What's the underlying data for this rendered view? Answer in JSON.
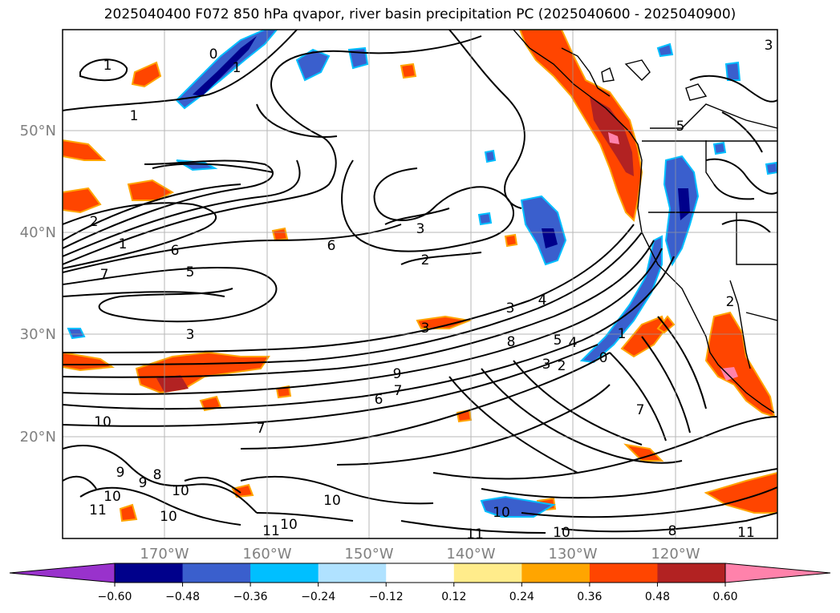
{
  "title": "2025040400 F072 850 hPa qvapor, river basin precipitation PC (2025040600 - 2025040900)",
  "lat_labels": [
    "50°N",
    "40°N",
    "30°N",
    "20°N"
  ],
  "lon_labels": [
    "170°W",
    "160°W",
    "150°W",
    "140°W",
    "130°W",
    "120°W"
  ],
  "colorbar": {
    "colors": [
      "#9932cc",
      "#00008b",
      "#3a5fcd",
      "#00bfff",
      "#b0e2ff",
      "#ffffff",
      "#ffec8b",
      "#ffa500",
      "#ff4500",
      "#b22222",
      "#ff82ab"
    ],
    "ticks": [
      "−0.60",
      "−0.48",
      "−0.36",
      "−0.24",
      "−0.12",
      "0.12",
      "0.24",
      "0.36",
      "0.48",
      "0.60"
    ]
  },
  "contour_labels": [
    "1",
    "0",
    "1",
    "1",
    "5",
    "2",
    "1",
    "6",
    "7",
    "5",
    "3",
    "2",
    "3",
    "6",
    "3",
    "4",
    "3",
    "8",
    "5",
    "4",
    "3",
    "2",
    "0",
    "1",
    "9",
    "7",
    "6",
    "10",
    "7",
    "9",
    "9",
    "8",
    "10",
    "10",
    "11",
    "10",
    "10",
    "11",
    "10",
    "11",
    "10",
    "8",
    "10",
    "11",
    "7",
    "2",
    "3"
  ],
  "colors": {
    "land": "#000000",
    "grid": "#9a9a9a",
    "contour": "#000000"
  }
}
